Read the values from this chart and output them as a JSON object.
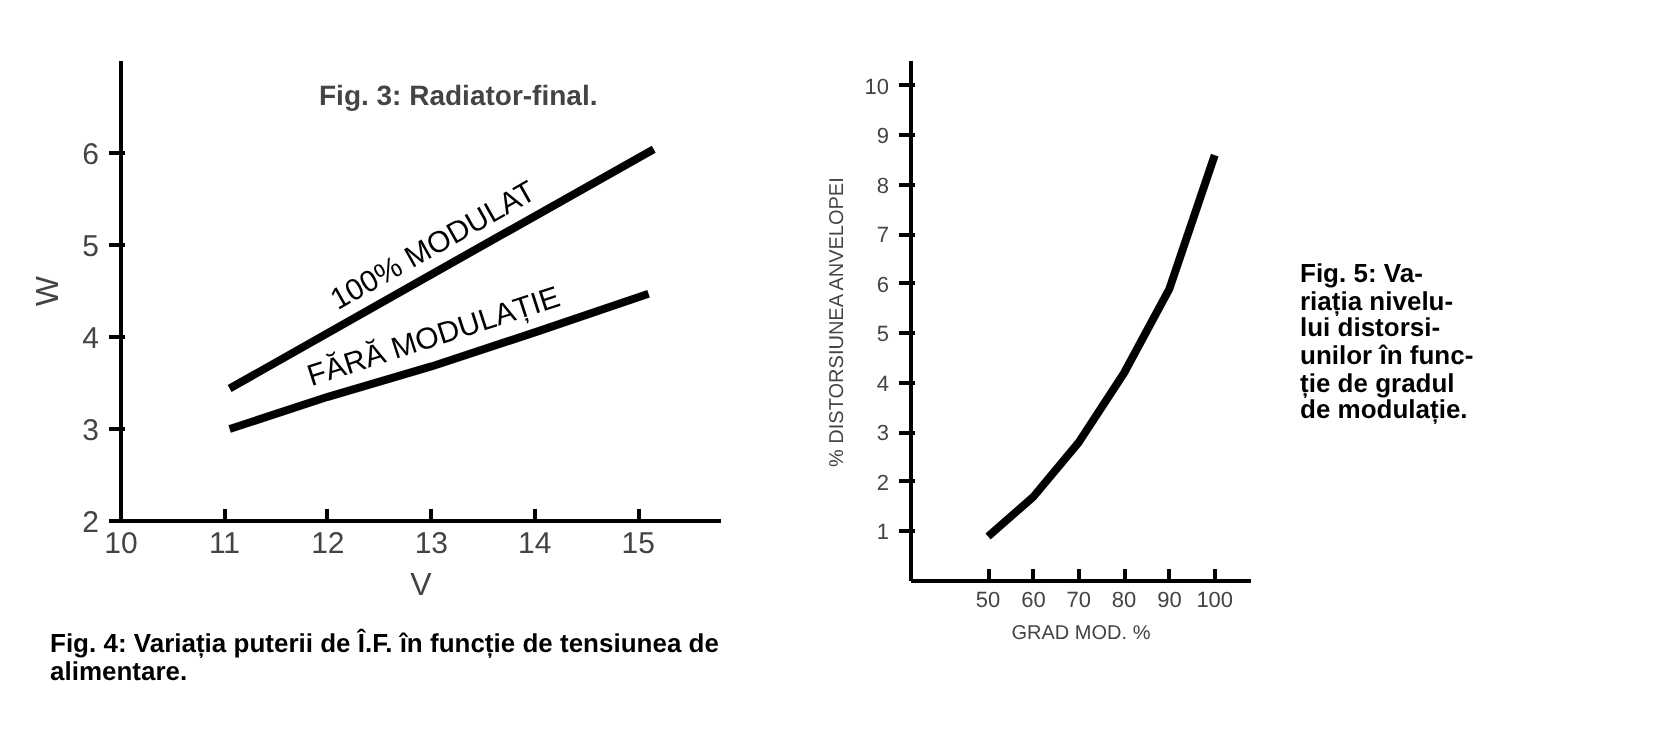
{
  "chart_data": [
    {
      "type": "line",
      "xlabel": "V",
      "ylabel": "W",
      "xlim": [
        10,
        15.8
      ],
      "ylim": [
        2,
        7
      ],
      "xticks": [
        10,
        11,
        12,
        13,
        14,
        15
      ],
      "yticks": [
        2,
        3,
        4,
        5,
        6
      ],
      "annotations": [
        "Fig. 3: Radiator-final.",
        "Fig. 4: Variația puterii de Î.F. în funcție de tensiunea de alimentare."
      ],
      "series": [
        {
          "name": "100% MODULAT",
          "color": "#000000",
          "x": [
            11.05,
            13,
            15.15
          ],
          "values": [
            3.44,
            4.68,
            6.04
          ]
        },
        {
          "name": "FĂRĂ MODULAȚIE",
          "color": "#000000",
          "x": [
            11.05,
            12,
            13,
            14,
            15.1
          ],
          "values": [
            3.0,
            3.35,
            3.68,
            4.05,
            4.47
          ]
        }
      ]
    },
    {
      "type": "line",
      "xlabel": "GRAD MOD. %",
      "ylabel": "% DISTORSIUNEA ANVELOPEI",
      "xlim": [
        33,
        108
      ],
      "ylim": [
        0,
        10.5
      ],
      "xticks": [
        50,
        60,
        70,
        80,
        90,
        100
      ],
      "yticks": [
        1,
        2,
        3,
        4,
        5,
        6,
        7,
        8,
        9,
        10
      ],
      "annotations": [
        "Fig. 5: Va-\nriația nivelu-\nlui distorsi-\nunilor în func-\nție de gradul\nde modulație."
      ],
      "series": [
        {
          "color": "#000000",
          "x": [
            50,
            60,
            70,
            80,
            90,
            100
          ],
          "values": [
            0.9,
            1.7,
            2.8,
            4.2,
            5.9,
            8.6
          ]
        }
      ]
    }
  ]
}
